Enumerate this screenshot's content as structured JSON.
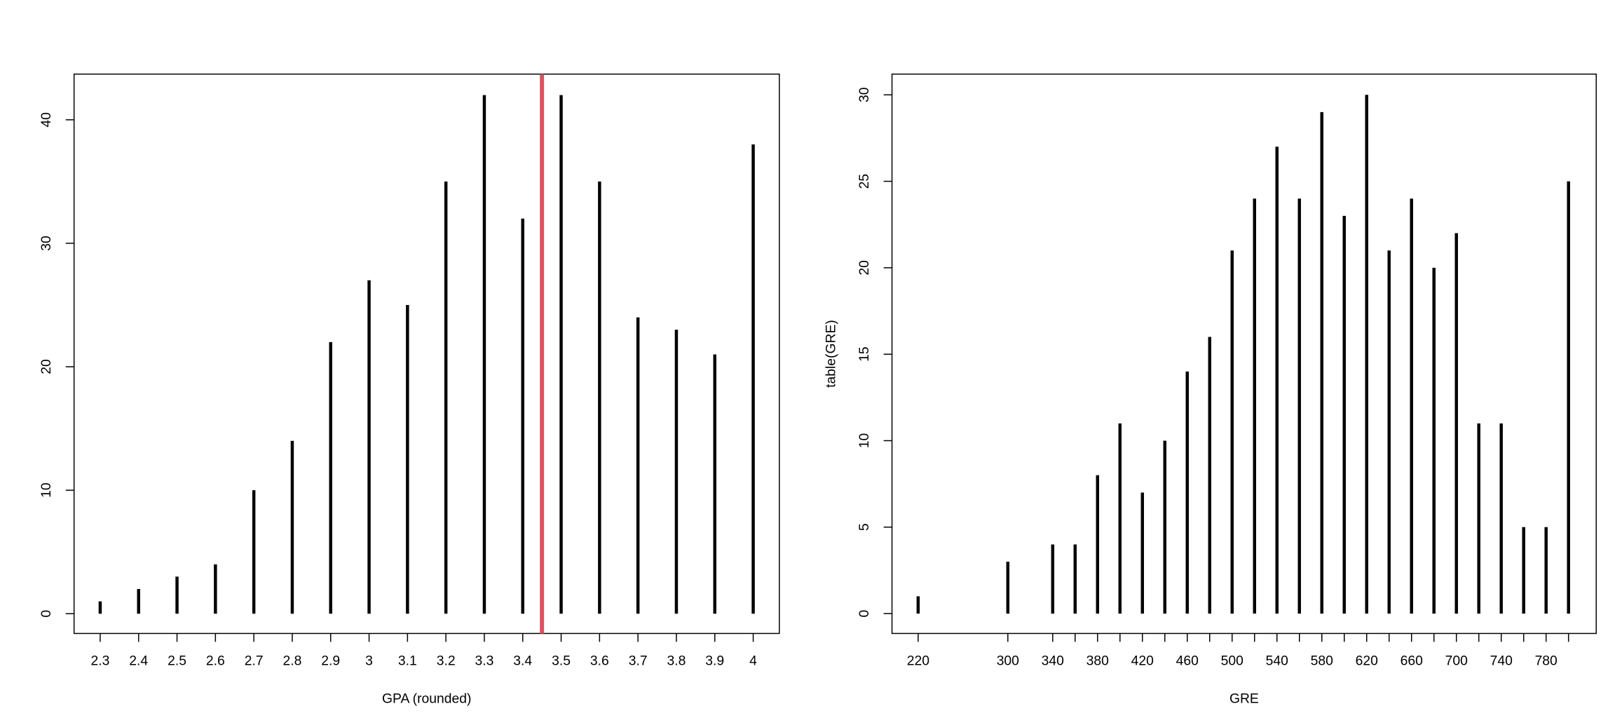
{
  "chart_data": [
    {
      "type": "bar",
      "x_label": "GPA (rounded)",
      "x": [
        2.3,
        2.4,
        2.5,
        2.6,
        2.7,
        2.8,
        2.9,
        3,
        3.1,
        3.2,
        3.3,
        3.4,
        3.5,
        3.6,
        3.7,
        3.8,
        3.9,
        4
      ],
      "values": [
        1,
        2,
        3,
        4,
        10,
        14,
        22,
        27,
        25,
        35,
        42,
        32,
        42,
        35,
        24,
        23,
        21,
        38
      ],
      "color": "#000000",
      "vline": 3.45,
      "vline_color": "#d9545f",
      "xlim": [
        2.232,
        4.068
      ],
      "ylim": [
        -1.6,
        43.7
      ],
      "xticks": [
        2.3,
        2.4,
        2.5,
        2.6,
        2.7,
        2.8,
        2.9,
        3,
        3.1,
        3.2,
        3.3,
        3.4,
        3.5,
        3.6,
        3.7,
        3.8,
        3.9,
        4
      ],
      "yticks": [
        0,
        10,
        20,
        30,
        40
      ]
    },
    {
      "type": "bar",
      "x_label": "GRE",
      "y_label": "table(GRE)",
      "x": [
        220,
        300,
        340,
        360,
        380,
        400,
        420,
        440,
        460,
        480,
        500,
        520,
        540,
        560,
        580,
        600,
        620,
        640,
        660,
        680,
        700,
        720,
        740,
        760,
        780,
        800
      ],
      "values": [
        1,
        3,
        4,
        4,
        8,
        11,
        7,
        10,
        14,
        16,
        21,
        24,
        27,
        24,
        29,
        23,
        30,
        21,
        24,
        20,
        22,
        11,
        11,
        5,
        5,
        25
      ],
      "color": "#000000",
      "xlim": [
        196.7,
        824.7
      ],
      "ylim": [
        -1.15,
        31.2
      ],
      "xticks": [
        220,
        300,
        340,
        380,
        420,
        460,
        500,
        540,
        580,
        620,
        660,
        700,
        740,
        780
      ],
      "yticks": [
        0,
        5,
        10,
        15,
        20,
        25,
        30
      ]
    }
  ]
}
